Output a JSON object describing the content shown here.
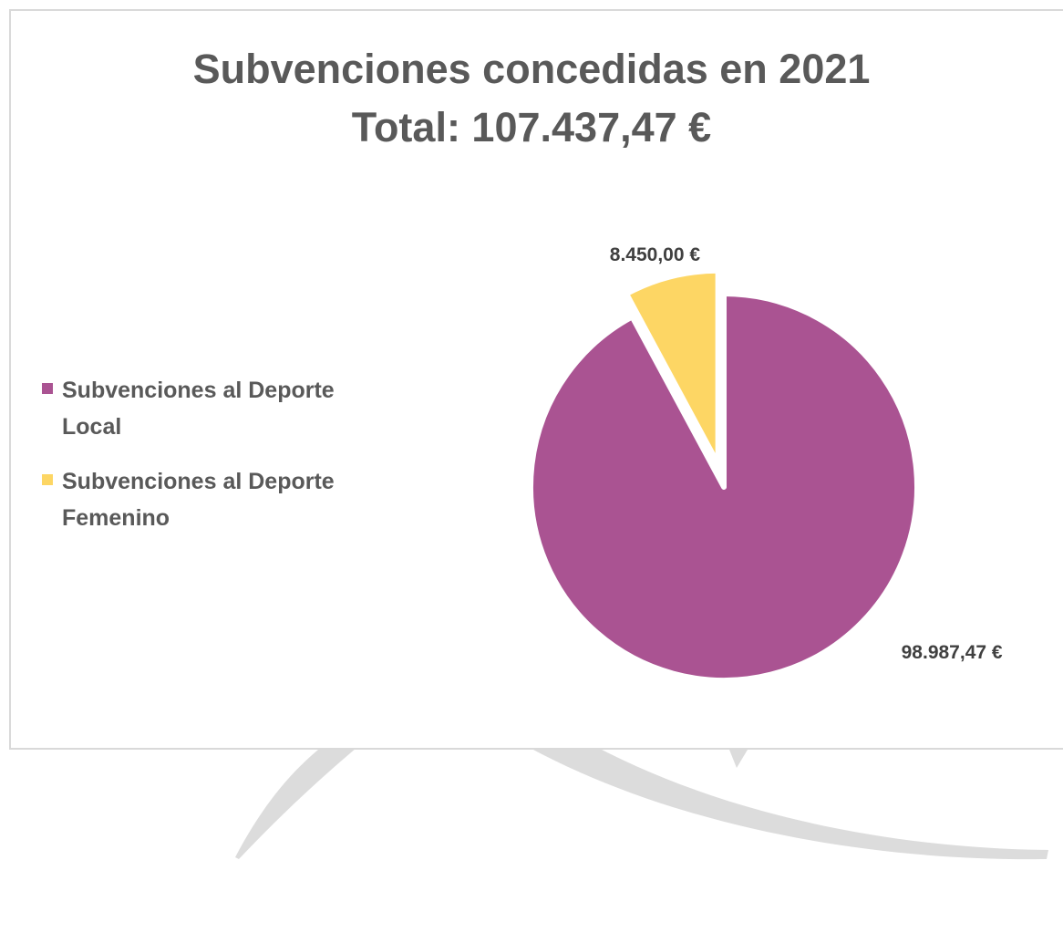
{
  "chart_data": {
    "type": "pie",
    "title": "Subvenciones concedidas en 2021",
    "subtitle": "Total: 107.437,47 €",
    "categories": [
      "Subvenciones al Deporte Local",
      "Subvenciones al Deporte Femenino"
    ],
    "values": [
      98987.47,
      8450.0
    ],
    "data_labels": [
      "98.987,47 €",
      "8.450,00 €"
    ],
    "colors": [
      "#aa5392",
      "#fdd664"
    ],
    "exploded": [
      false,
      true
    ],
    "legend_position": "left"
  },
  "legend": {
    "items": [
      {
        "label": "Subvenciones al Deporte Local",
        "color": "#aa5392"
      },
      {
        "label": "Subvenciones al Deporte Femenino",
        "color": "#fdd664"
      }
    ]
  }
}
